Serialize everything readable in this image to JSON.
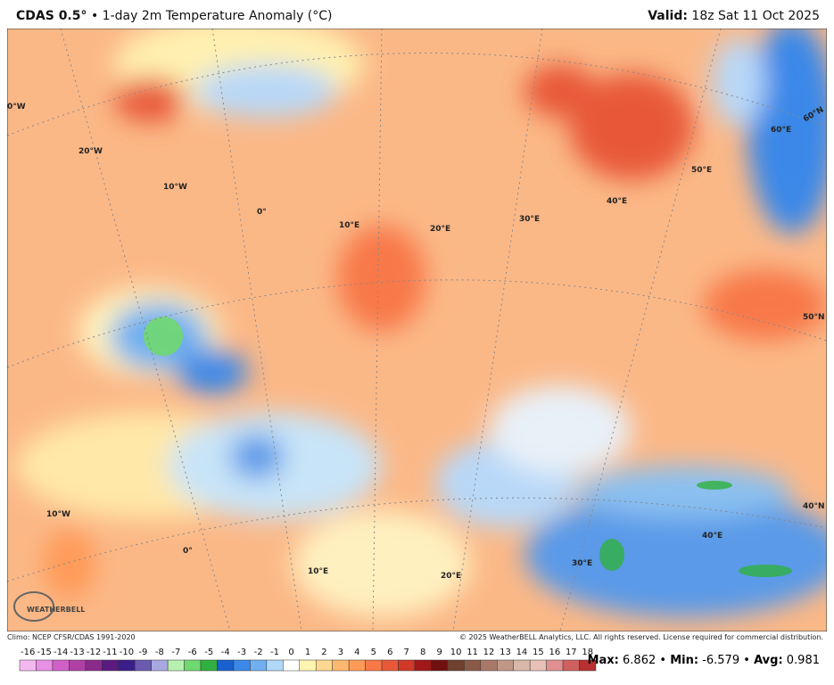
{
  "header": {
    "model": "CDAS 0.5°",
    "title": "• 1-day 2m Temperature Anomaly (°C)",
    "valid_label": "Valid:",
    "valid_time": "18z Sat 11 Oct 2025"
  },
  "map": {
    "labels": [
      "0°W",
      "20°W",
      "10°W",
      "0°",
      "10°E",
      "20°E",
      "30°E",
      "40°E",
      "50°E",
      "60°E",
      "60°N",
      "50°N",
      "40°N",
      "10°W",
      "0°",
      "10°E",
      "20°E",
      "30°E",
      "40°E"
    ],
    "logo": "WEATHERBELL"
  },
  "footer": {
    "climo": "Climo: NCEP CFSR/CDAS 1991-2020",
    "copyright": "© 2025 WeatherBELL Analytics, LLC. All rights reserved. License required for commercial distribution."
  },
  "colorbar": {
    "ticks": [
      -16,
      -15,
      -14,
      -13,
      -12,
      -11,
      -10,
      -9,
      -8,
      -7,
      -6,
      -5,
      -4,
      -3,
      -2,
      -1,
      0,
      1,
      2,
      3,
      4,
      5,
      6,
      7,
      8,
      9,
      10,
      11,
      12,
      13,
      14,
      15,
      16,
      17,
      18
    ],
    "colors": [
      "#f4b8f0",
      "#e890e4",
      "#d060c8",
      "#b040a8",
      "#8a2a8c",
      "#5a1a80",
      "#3a1e8a",
      "#6a5ab0",
      "#a8a8e0",
      "#b8f0b0",
      "#70d870",
      "#30b040",
      "#1a60d0",
      "#3a88e8",
      "#70b0f0",
      "#b0d8f8",
      "#ffffff",
      "#fff4b0",
      "#ffd890",
      "#ffb870",
      "#ff9a58",
      "#f87848",
      "#e85838",
      "#d03828",
      "#a01818",
      "#701010",
      "#704030",
      "#8a5a48",
      "#a87868",
      "#c09888",
      "#d8b8a8",
      "#e8c0b8",
      "#e09090",
      "#d06060",
      "#b83030"
    ]
  },
  "stats": [
    {
      "label": "Max:",
      "value": 6.862
    },
    {
      "label": "Min:",
      "value": -6.579
    },
    {
      "label": "Avg:",
      "value": 0.981
    }
  ],
  "separator": "•"
}
